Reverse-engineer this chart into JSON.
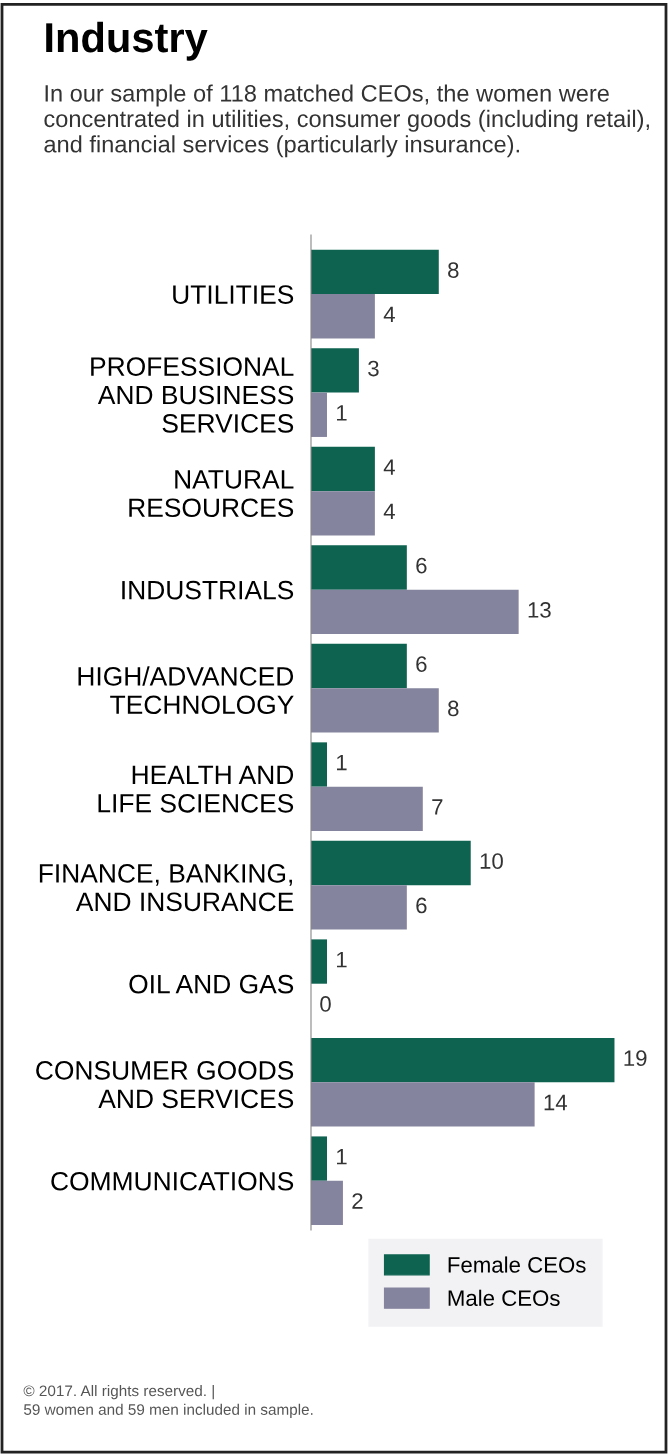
{
  "chart_data": {
    "type": "bar",
    "orientation": "horizontal",
    "title": "Industry",
    "subtitle": "In our sample of 118 matched CEOs, the women were concentrated in utilities, consumer goods (including retail), and financial services (particularly insurance).",
    "categories": [
      "UTILITIES",
      "PROFESSIONAL\nAND BUSINESS\nSERVICES",
      "NATURAL\nRESOURCES",
      "INDUSTRIALS",
      "HIGH/ADVANCED\nTECHNOLOGY",
      "HEALTH AND\nLIFE SCIENCES",
      "FINANCE, BANKING,\nAND INSURANCE",
      "OIL AND GAS",
      "CONSUMER GOODS\nAND SERVICES",
      "COMMUNICATIONS"
    ],
    "series": [
      {
        "name": "Female CEOs",
        "color": "#0e6350",
        "values": [
          8,
          3,
          4,
          6,
          6,
          1,
          10,
          1,
          19,
          1
        ]
      },
      {
        "name": "Male CEOs",
        "color": "#85849e",
        "values": [
          4,
          1,
          4,
          13,
          8,
          7,
          6,
          0,
          14,
          2
        ]
      }
    ],
    "data_labels": true,
    "legend": "bottom",
    "grid": false,
    "annotations": [
      "© 2017. All rights reserved. |\n59 women and 59 men included in sample."
    ]
  }
}
